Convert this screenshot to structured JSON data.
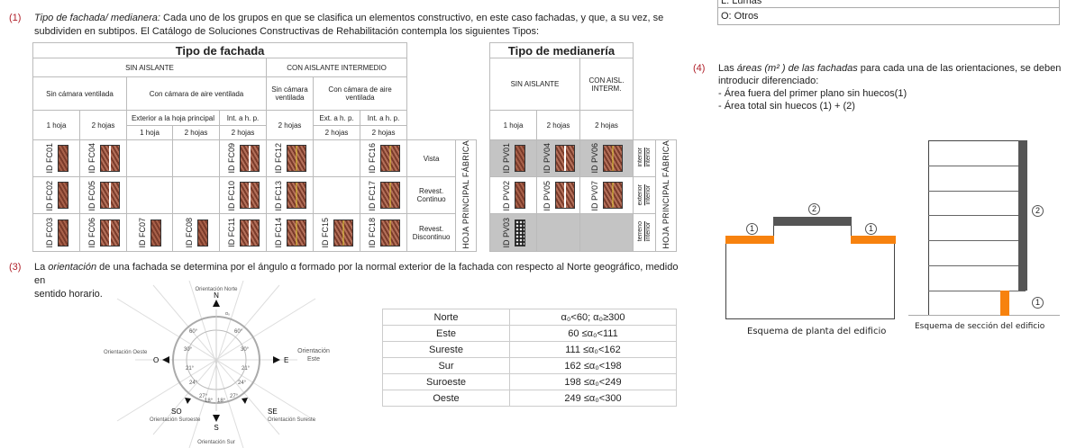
{
  "legend_box": {
    "partial": "L: Lumas",
    "otros": "O: Otros"
  },
  "note1": {
    "num": "(1)",
    "title": "Tipo de fachada/ medianera:",
    "text1": " Cada uno de los grupos  en que se clasifica un elementos constructivo, en este caso fachadas, y que, a su vez, se",
    "text2": "subdividen en subtipos. El Catálogo de Soluciones Constructivas de Rehabilitación contempla los siguientes Tipos:"
  },
  "fachada": {
    "title": "Tipo de fachada",
    "sin": "SIN AISLANTE",
    "con": "CON AISLANTE INTERMEDIO",
    "sin_cam": "Sin cámara ventilada",
    "con_cam": "Con cámara de aire ventilada",
    "sin_cam2": "Sin cámara ventilada",
    "con_cam2": "Con cámara de aire ventilada",
    "h1": "1 hoja",
    "h2": "2 hojas",
    "ext": "Exterior a la hoja principal",
    "int": "Int.  a h. p.",
    "e1": "1 hoja",
    "e2": "2 hojas",
    "i2": "2 hojas",
    "c2": "2 hojas",
    "exta": "Ext. a h. p.",
    "inta": "Int.  a h. p.",
    "ce2": "2 hojas",
    "ci2": "2 hojas",
    "rows": [
      {
        "label": "Vista",
        "ids": [
          "ID FC01",
          "ID FC04",
          "",
          "",
          "ID FC09",
          "ID FC12",
          "",
          "ID FC16"
        ]
      },
      {
        "label": "Revest. Continuo",
        "ids": [
          "ID FC02",
          "ID FC05",
          "",
          "",
          "ID FC10",
          "ID FC13",
          "",
          "ID FC17"
        ]
      },
      {
        "label": "Revest. Discontinuo",
        "ids": [
          "ID FC03",
          "ID FC06",
          "ID FC07",
          "ID FC08",
          "ID FC11",
          "ID FC14",
          "ID FC15",
          "ID FC18"
        ]
      }
    ],
    "hoja": "HOJA PRINCIPAL FÁBRICA"
  },
  "medianeria": {
    "title": "Tipo de medianería",
    "sin": "SIN AISLANTE",
    "con": "CON AISL. INTERM.",
    "h1": "1 hoja",
    "h2": "2 hojas",
    "c2": "2 hojas",
    "rows": [
      {
        "ids": [
          "ID PV01",
          "ID PV04",
          "ID PV06"
        ],
        "top": "interior",
        "bot": "interior"
      },
      {
        "ids": [
          "ID PV02",
          "ID PV05",
          "ID PV07"
        ],
        "top": "exterior",
        "bot": "interior"
      },
      {
        "ids": [
          "ID PV03",
          "",
          ""
        ],
        "top": "terreno",
        "bot": "interior"
      }
    ],
    "hoja": "HOJA PRINCIPAL FÁBRICA"
  },
  "note3": {
    "num": "(3)",
    "t1": "La ",
    "em": "orientación",
    "t2": " de una fachada se determina por el ángulo α formado por la normal exterior de la fachada con respecto al Norte geográfico, medido en",
    "t3": "sentido horario."
  },
  "compass": {
    "norte": "Orientación Norte",
    "n": "N",
    "e": "E",
    "este": "Orientación Este",
    "o": "O",
    "oeste": "Orientación Oeste",
    "s": "S",
    "sur": "Orientación Sur",
    "se": "SE",
    "sureste": "Orientación Sureste",
    "so": "SO",
    "suroeste": "Orientación Suroeste",
    "alpha": "α₀",
    "angles": [
      "60°",
      "60°",
      "30°",
      "30°",
      "21°",
      "21°",
      "24°",
      "24°",
      "27°",
      "27°",
      "18°",
      "18°"
    ]
  },
  "orient_table": [
    [
      "Norte",
      "α₀<60; α₀≥300"
    ],
    [
      "Este",
      "60 ≤α₀<111"
    ],
    [
      "Sureste",
      "111 ≤α₀<162"
    ],
    [
      "Sur",
      "162 ≤α₀<198"
    ],
    [
      "Suroeste",
      "198 ≤α₀<249"
    ],
    [
      "Oeste",
      "249 ≤α₀<300"
    ]
  ],
  "note4": {
    "num": "(4)",
    "t1": "Las ",
    "em": "áreas (m² ) de las fachadas",
    "t2": "  para cada una de las orientaciones, se deben",
    "t3": "introducir diferenciado:",
    "b1": "- Área fuera del primer plano sin huecos(1)",
    "b2": "- Área total sin huecos (1) + (2)"
  },
  "plan": {
    "caption": "Esquema de planta del edificio",
    "c1": "1",
    "c2": "2",
    "c3": "1"
  },
  "section": {
    "caption": "Esquema de sección del edificio",
    "c2": "2",
    "c1": "1"
  },
  "colors": {
    "orange": "#f7820e",
    "dark": "#555555",
    "accent": "#b0202a"
  }
}
